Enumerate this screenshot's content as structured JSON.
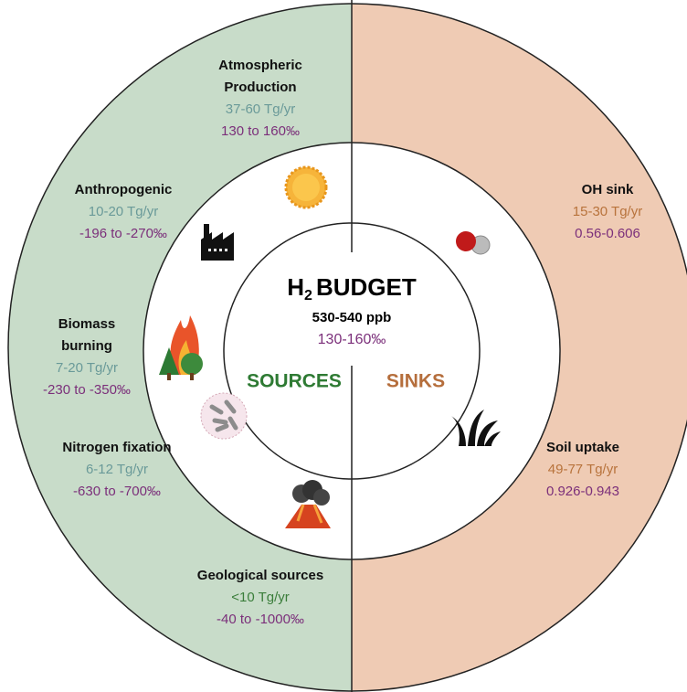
{
  "center": {
    "title": {
      "main": "H",
      "sub": "2",
      "rest": "BUDGET"
    },
    "concentration": "530-540 ppb",
    "isotope": "130-160‰"
  },
  "halves": {
    "left": "SOURCES",
    "right": "SINKS"
  },
  "sources": [
    {
      "name": [
        "Atmospheric",
        "Production"
      ],
      "flux": "37-60 Tg/yr",
      "isotope": "130 to 160‰"
    },
    {
      "name": [
        "Anthropogenic"
      ],
      "flux": "10-20 Tg/yr",
      "isotope": "-196 to -270‰"
    },
    {
      "name": [
        "Biomass",
        "burning"
      ],
      "flux": "7-20 Tg/yr",
      "isotope": "-230 to -350‰"
    },
    {
      "name": [
        "Nitrogen fixation"
      ],
      "flux": "6-12 Tg/yr",
      "isotope": "-630 to -700‰"
    },
    {
      "name": [
        "Geological sources"
      ],
      "flux": "<10 Tg/yr",
      "isotope": "-40 to -1000‰"
    }
  ],
  "sinks": [
    {
      "name": [
        "OH sink"
      ],
      "flux": "15-30 Tg/yr",
      "isotope": "0.56-0.606"
    },
    {
      "name": [
        "Soil uptake"
      ],
      "flux": "49-77 Tg/yr",
      "isotope": "0.926-0.943"
    }
  ]
}
